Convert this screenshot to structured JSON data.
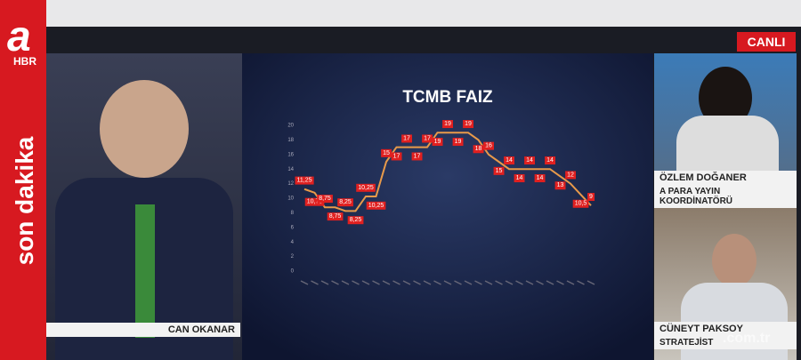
{
  "logo": {
    "mark": "a",
    "sub": "HBR"
  },
  "ticker": "son dakika",
  "live": "CANLI",
  "watermark": ".com.tr",
  "hosts": [
    {
      "name": "CAN OKANAR"
    },
    {
      "name": "ÖZLEM DOĞANER",
      "role": "A PARA YAYIN KOORDİNATÖRÜ"
    },
    {
      "name": "CÜNEYT PAKSOY",
      "role": "STRATEJİST"
    }
  ],
  "chart_data": {
    "type": "line",
    "title": "TCMB FAIZ",
    "categories": [
      null,
      null,
      null,
      null,
      null,
      null,
      null,
      null,
      null,
      null,
      null,
      null,
      null,
      null,
      null,
      null,
      null,
      null,
      null,
      null,
      null,
      null,
      null,
      null,
      null,
      null,
      null,
      null,
      null
    ],
    "series": [
      {
        "name": null,
        "color": "#e89a4a",
        "values": [
          11.25,
          10.75,
          8.75,
          8.75,
          8.25,
          8.25,
          10.25,
          10.25,
          15,
          17,
          17,
          17,
          17,
          19,
          19,
          19,
          19,
          18,
          16,
          15,
          14,
          14,
          14,
          14,
          14,
          13,
          12,
          10.5,
          9
        ],
        "value_labels": [
          "11,25",
          "10,75",
          "8,75",
          "8,75",
          "8,25",
          "8,25",
          "10,25",
          "10,25",
          "15",
          "17",
          "17",
          "17",
          "17",
          "19",
          "19",
          "19",
          "19",
          "18",
          "16",
          "15",
          "14",
          "14",
          "14",
          "14",
          "14",
          "13",
          "12",
          "10,5",
          "9"
        ]
      }
    ],
    "ylim": [
      0,
      20
    ],
    "yticks": [
      0,
      2,
      4,
      6,
      8,
      10,
      12,
      14,
      16,
      18,
      20
    ],
    "grid": false
  }
}
